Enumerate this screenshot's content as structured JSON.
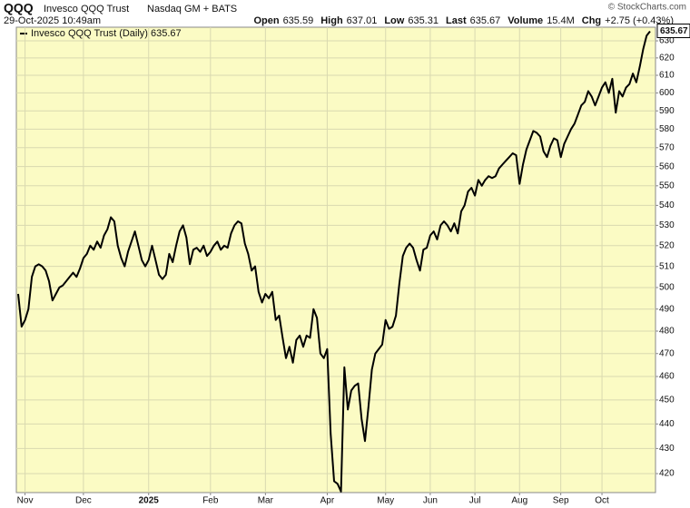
{
  "chart_data": {
    "type": "line",
    "symbol": "QQQ",
    "name": "Invesco QQQ Trust",
    "exchange": "Nasdaq GM + BATS",
    "timestamp": "29-Oct-2025 10:49am",
    "quote": [
      {
        "label": "Open",
        "value": 635.59
      },
      {
        "label": "High",
        "value": 637.01
      },
      {
        "label": "Low",
        "value": 635.31
      },
      {
        "label": "Last",
        "value": 635.67
      },
      {
        "label": "Volume",
        "value": "15.4M"
      },
      {
        "label": "Chg",
        "value": "+2.75 (+0.43%)"
      }
    ],
    "credit": "© StockCharts.com",
    "log_scale": true,
    "grid": true,
    "legend": "top-left",
    "series": [
      {
        "name": "Invesco QQQ Trust (Daily) 635.67",
        "color": "#000000",
        "values": [
          497,
          482,
          485,
          490,
          505,
          510,
          511,
          510,
          508,
          503,
          494,
          497,
          500,
          501,
          503,
          505,
          507,
          505,
          509,
          514,
          516,
          520,
          518,
          522,
          519,
          525,
          528,
          534,
          532,
          520,
          514,
          510,
          517,
          522,
          527,
          520,
          513,
          510,
          513,
          520,
          513,
          506,
          504,
          506,
          516,
          512,
          520,
          527,
          530,
          524,
          511,
          518,
          519,
          517,
          520,
          515,
          517,
          520,
          522,
          518,
          520,
          519,
          526,
          530,
          532,
          531,
          521,
          516,
          508,
          510,
          498,
          493,
          497,
          495,
          498,
          485,
          487,
          477,
          468,
          473,
          466,
          476,
          478,
          473,
          478,
          477,
          490,
          486,
          470,
          468,
          472,
          436,
          417,
          416,
          413,
          464,
          446,
          454,
          456,
          457,
          442,
          433,
          447,
          463,
          470,
          472,
          474,
          485,
          481,
          482,
          487,
          502,
          515,
          519,
          521,
          519,
          513,
          508,
          518,
          519,
          525,
          527,
          523,
          530,
          532,
          530,
          527,
          531,
          526,
          537,
          540,
          547,
          549,
          545,
          553,
          550,
          553,
          555,
          554,
          555,
          559,
          561,
          563,
          565,
          567,
          566,
          551,
          561,
          569,
          574,
          579,
          578,
          576,
          568,
          565,
          571,
          575,
          574,
          565,
          572,
          576,
          580,
          583,
          588,
          593,
          595,
          601,
          598,
          593,
          598,
          603,
          606,
          600,
          608,
          589,
          601,
          598,
          603,
          605,
          611,
          606,
          615,
          625,
          633,
          635.67
        ]
      }
    ],
    "xlim": [
      0,
      184
    ],
    "xticks": [
      {
        "value": 2,
        "label": "Nov"
      },
      {
        "value": 19,
        "label": "Dec"
      },
      {
        "value": 38,
        "label": "2025"
      },
      {
        "value": 56,
        "label": "Feb"
      },
      {
        "value": 72,
        "label": "Mar"
      },
      {
        "value": 90,
        "label": "Apr"
      },
      {
        "value": 107,
        "label": "May"
      },
      {
        "value": 120,
        "label": "Jun"
      },
      {
        "value": 133,
        "label": "Jul"
      },
      {
        "value": 146,
        "label": "Aug"
      },
      {
        "value": 158,
        "label": "Sep"
      },
      {
        "value": 170,
        "label": "Oct"
      }
    ],
    "ylim": [
      412.6,
      638.1
    ],
    "yticks": [
      420,
      430,
      440,
      450,
      460,
      470,
      480,
      490,
      500,
      510,
      520,
      530,
      540,
      550,
      560,
      570,
      580,
      590,
      600,
      610,
      620,
      630
    ]
  }
}
